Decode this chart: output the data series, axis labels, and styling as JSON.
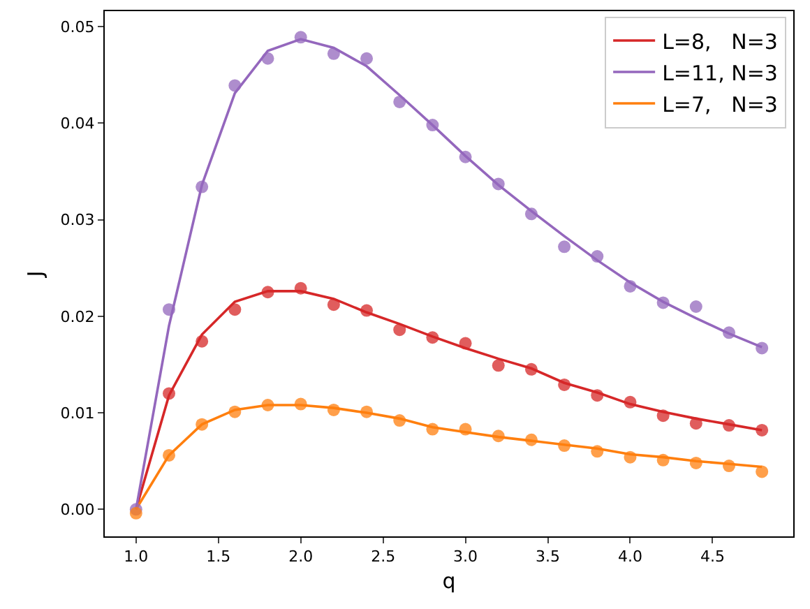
{
  "chart_data": {
    "type": "line",
    "xlabel": "q",
    "ylabel": "J",
    "x": [
      1.0,
      1.2,
      1.4,
      1.6,
      1.8,
      2.0,
      2.2,
      2.4,
      2.6,
      2.8,
      3.0,
      3.2,
      3.4,
      3.6,
      3.8,
      4.0,
      4.2,
      4.4,
      4.6,
      4.8
    ],
    "series": [
      {
        "name": "L=8,   N=3",
        "marker": "none",
        "color": "#d62728",
        "values": [
          0.0,
          0.0118,
          0.0181,
          0.0215,
          0.0226,
          0.0226,
          0.0218,
          0.0204,
          0.0192,
          0.0179,
          0.0167,
          0.0156,
          0.0146,
          0.0131,
          0.0121,
          0.0109,
          0.0101,
          0.0094,
          0.0088,
          0.0082
        ]
      },
      {
        "name": "L=11, N=3",
        "marker": "none",
        "color": "#9467bd",
        "values": [
          0.0,
          0.019,
          0.0336,
          0.0431,
          0.0475,
          0.0487,
          0.0478,
          0.0459,
          0.0429,
          0.0398,
          0.0366,
          0.0336,
          0.0309,
          0.0283,
          0.0258,
          0.0235,
          0.0215,
          0.0198,
          0.0182,
          0.0168
        ]
      },
      {
        "name": "L=7,   N=3",
        "marker": "none",
        "color": "#ff7f0e",
        "values": [
          0.0,
          0.0056,
          0.0088,
          0.0103,
          0.0108,
          0.0108,
          0.0105,
          0.01,
          0.0094,
          0.0085,
          0.008,
          0.0075,
          0.0071,
          0.0067,
          0.0063,
          0.0057,
          0.0054,
          0.005,
          0.0047,
          0.0044
        ]
      },
      {
        "type": "scatter",
        "marker": "circle",
        "color": "#d62728",
        "values": [
          null,
          0.012,
          0.0174,
          0.0207,
          0.0225,
          0.0229,
          0.0212,
          0.0206,
          0.0186,
          0.0178,
          0.0172,
          0.0149,
          0.0145,
          0.0129,
          0.0118,
          0.0111,
          0.0097,
          0.0089,
          0.0087,
          0.0082
        ]
      },
      {
        "type": "scatter",
        "marker": "circle",
        "color": "#9467bd",
        "values": [
          0.0,
          0.0207,
          0.0334,
          0.0439,
          0.0467,
          0.0489,
          0.0472,
          0.0467,
          0.0422,
          0.0398,
          0.0365,
          0.0337,
          0.0306,
          0.0272,
          0.0262,
          0.0231,
          0.0214,
          0.021,
          0.0183,
          0.0167
        ]
      },
      {
        "type": "scatter",
        "marker": "circle",
        "color": "#ff7f0e",
        "values": [
          -0.0004,
          0.0056,
          0.0088,
          0.0101,
          0.0108,
          0.0109,
          0.0103,
          0.0101,
          0.0092,
          0.0083,
          0.0083,
          0.0076,
          0.0072,
          0.0066,
          0.006,
          0.0054,
          0.0051,
          0.0048,
          0.0045,
          0.0039
        ]
      }
    ],
    "xlim": [
      0.81,
      4.99
    ],
    "xticks": [
      {
        "value": 1.0,
        "label": "1.0"
      },
      {
        "value": 1.5,
        "label": "1.5"
      },
      {
        "value": 2.0,
        "label": "2.0"
      },
      {
        "value": 2.5,
        "label": "2.5"
      },
      {
        "value": 3.0,
        "label": "3.0"
      },
      {
        "value": 3.5,
        "label": "3.5"
      },
      {
        "value": 4.0,
        "label": "4.0"
      },
      {
        "value": 4.5,
        "label": "4.5"
      }
    ],
    "ylim": [
      -0.0028,
      0.0516
    ],
    "yticks": [
      {
        "value": 0,
        "label": "0.00"
      },
      {
        "value": 0.01,
        "label": "0.01"
      },
      {
        "value": 0.02,
        "label": "0.02"
      },
      {
        "value": 0.03,
        "label": "0.03"
      },
      {
        "value": 0.04,
        "label": "0.04"
      },
      {
        "value": 0.05,
        "label": "0.05"
      }
    ],
    "legend": "top right",
    "grid": false
  }
}
